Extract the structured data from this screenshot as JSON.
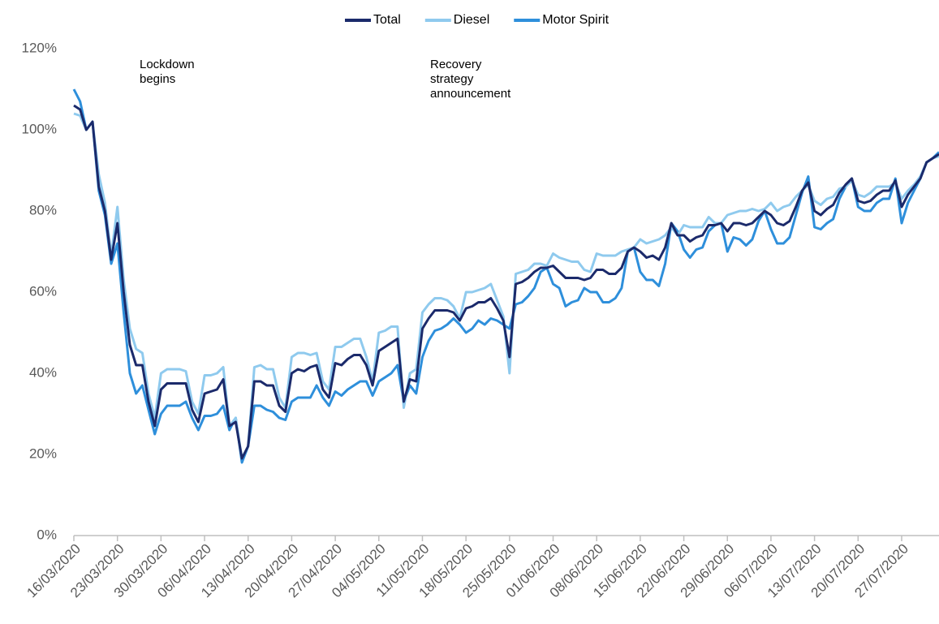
{
  "chart_data": {
    "type": "line",
    "categories": [
      "16/03/2020",
      null,
      null,
      null,
      null,
      null,
      null,
      "23/03/2020",
      null,
      null,
      null,
      null,
      null,
      null,
      "30/03/2020",
      null,
      null,
      null,
      null,
      null,
      null,
      "06/04/2020",
      null,
      null,
      null,
      null,
      null,
      null,
      "13/04/2020",
      null,
      null,
      null,
      null,
      null,
      null,
      "20/04/2020",
      null,
      null,
      null,
      null,
      null,
      null,
      "27/04/2020",
      null,
      null,
      null,
      null,
      null,
      null,
      "04/05/2020",
      null,
      null,
      null,
      null,
      null,
      null,
      "11/05/2020",
      null,
      null,
      null,
      null,
      null,
      null,
      "18/05/2020",
      null,
      null,
      null,
      null,
      null,
      null,
      "25/05/2020",
      null,
      null,
      null,
      null,
      null,
      null,
      "01/06/2020",
      null,
      null,
      null,
      null,
      null,
      null,
      "08/06/2020",
      null,
      null,
      null,
      null,
      null,
      null,
      "15/06/2020",
      null,
      null,
      null,
      null,
      null,
      null,
      "22/06/2020",
      null,
      null,
      null,
      null,
      null,
      null,
      "29/06/2020",
      null,
      null,
      null,
      null,
      null,
      null,
      "06/07/2020",
      null,
      null,
      null,
      null,
      null,
      null,
      "13/07/2020",
      null,
      null,
      null,
      null,
      null,
      null,
      "20/07/2020",
      null,
      null,
      null,
      null,
      null,
      null,
      "27/07/2020",
      null,
      null,
      null,
      null,
      null,
      null
    ],
    "series": [
      {
        "name": "Total",
        "color": "#1b2a6b",
        "values": [
          106,
          105,
          100,
          102,
          86,
          80,
          68,
          77,
          60,
          47,
          42,
          42,
          33,
          27,
          36,
          37.5,
          37.5,
          37.5,
          37.5,
          31,
          28,
          35,
          35.5,
          36,
          38.5,
          27,
          28,
          19,
          22,
          38,
          38,
          37,
          37,
          32,
          30.5,
          40,
          41,
          40.5,
          41.5,
          42,
          36,
          34,
          42.5,
          42,
          43.5,
          44.5,
          44.5,
          42,
          37,
          45.5,
          46.5,
          47.5,
          48.5,
          33,
          38.5,
          38,
          51,
          53.5,
          55.5,
          55.5,
          55.5,
          55,
          53,
          56,
          56.5,
          57.5,
          57.5,
          58.5,
          56,
          53,
          44,
          62,
          62.5,
          63.5,
          65,
          66,
          66,
          66.5,
          65,
          63.5,
          63.5,
          63.5,
          63,
          63.5,
          65.5,
          65.5,
          64.5,
          64.5,
          66,
          70,
          71,
          70,
          68.5,
          69,
          68,
          71,
          77,
          74,
          74,
          72.5,
          73.5,
          74,
          76.5,
          76.5,
          77,
          75,
          77,
          77,
          76.5,
          77,
          78.5,
          80,
          79,
          77,
          76.5,
          77.5,
          81,
          85,
          87,
          80,
          79,
          80.5,
          81.5,
          84.5,
          86.5,
          88,
          82.5,
          82,
          82.5,
          84,
          85,
          85,
          87.5,
          81,
          84,
          86,
          88,
          92,
          93,
          94
        ]
      },
      {
        "name": "Diesel",
        "color": "#8fcaee",
        "values": [
          104,
          103.5,
          100,
          102,
          89,
          82,
          69,
          81,
          63,
          51,
          46,
          45,
          35,
          29,
          40,
          41,
          41,
          41,
          40.5,
          33,
          30,
          39.5,
          39.5,
          40,
          41.5,
          27,
          29,
          19,
          22,
          41.5,
          42,
          41,
          41,
          34,
          31.5,
          44,
          45,
          45,
          44.5,
          45,
          38,
          36,
          46.5,
          46.5,
          47.5,
          48.5,
          48.5,
          44,
          38,
          50,
          50.5,
          51.5,
          51.5,
          31.5,
          40,
          41,
          55,
          57,
          58.5,
          58.5,
          58,
          56.5,
          53.5,
          60,
          60,
          60.5,
          61,
          62,
          58,
          54,
          40,
          64.5,
          65,
          65.5,
          67,
          67,
          66.5,
          69.5,
          68.5,
          68,
          67.5,
          67.5,
          65.5,
          65,
          69.5,
          69,
          69,
          69,
          70,
          70.5,
          71,
          73,
          72,
          72.5,
          73,
          74,
          76,
          74,
          76.5,
          76,
          76,
          76,
          78.5,
          77,
          77,
          79,
          79.5,
          80,
          80,
          80.5,
          80,
          80.5,
          82,
          80,
          81,
          81.5,
          83.5,
          85,
          86.5,
          82.5,
          81.5,
          83,
          83.5,
          85.5,
          86,
          87.5,
          84,
          83.5,
          84.5,
          86,
          86,
          86,
          87,
          83,
          85,
          86.5,
          88.5,
          92,
          93,
          93.5
        ]
      },
      {
        "name": "Motor Spirit",
        "color": "#2e8fdb",
        "values": [
          110,
          107,
          100,
          102,
          85,
          79,
          67,
          72,
          55,
          40,
          35,
          37,
          31,
          25,
          30,
          32,
          32,
          32,
          33,
          29,
          26,
          29.5,
          29.5,
          30,
          32,
          26,
          29,
          18,
          22,
          32,
          32,
          31,
          30.5,
          29,
          28.5,
          33,
          34,
          34,
          34,
          37,
          34,
          32,
          35.5,
          34.5,
          36,
          37,
          38,
          38,
          34.5,
          38,
          39,
          40,
          42,
          33,
          37,
          35,
          44,
          48,
          50.5,
          51,
          52,
          53.5,
          52,
          50,
          51,
          53,
          52,
          53.5,
          53,
          52,
          51,
          57,
          57.5,
          59,
          61,
          65,
          66,
          62,
          61,
          56.5,
          57.5,
          58,
          61,
          60,
          60,
          57.5,
          57.5,
          58.5,
          61,
          70,
          71,
          65,
          63,
          63,
          61.5,
          67,
          77,
          75,
          70.5,
          68.5,
          70.5,
          71,
          75,
          76.5,
          77,
          70,
          73.5,
          73,
          71.5,
          73,
          77.5,
          80,
          75.5,
          72,
          72,
          73.5,
          79,
          84.5,
          88.5,
          76,
          75.5,
          77,
          78,
          83,
          86,
          88,
          81,
          80,
          80,
          82,
          83,
          83,
          88,
          77,
          82,
          85,
          88,
          92,
          93,
          94.5
        ]
      }
    ],
    "annotations": [
      "Lockdown begins",
      "Recovery strategy announcement"
    ],
    "ylim": [
      0,
      120
    ],
    "yticks": [
      {
        "value": 0,
        "label": "0%"
      },
      {
        "value": 20,
        "label": "20%"
      },
      {
        "value": 40,
        "label": "40%"
      },
      {
        "value": 60,
        "label": "60%"
      },
      {
        "value": 80,
        "label": "80%"
      },
      {
        "value": 100,
        "label": "100%"
      },
      {
        "value": 120,
        "label": "120%"
      }
    ],
    "legend": "top",
    "grid": false
  }
}
